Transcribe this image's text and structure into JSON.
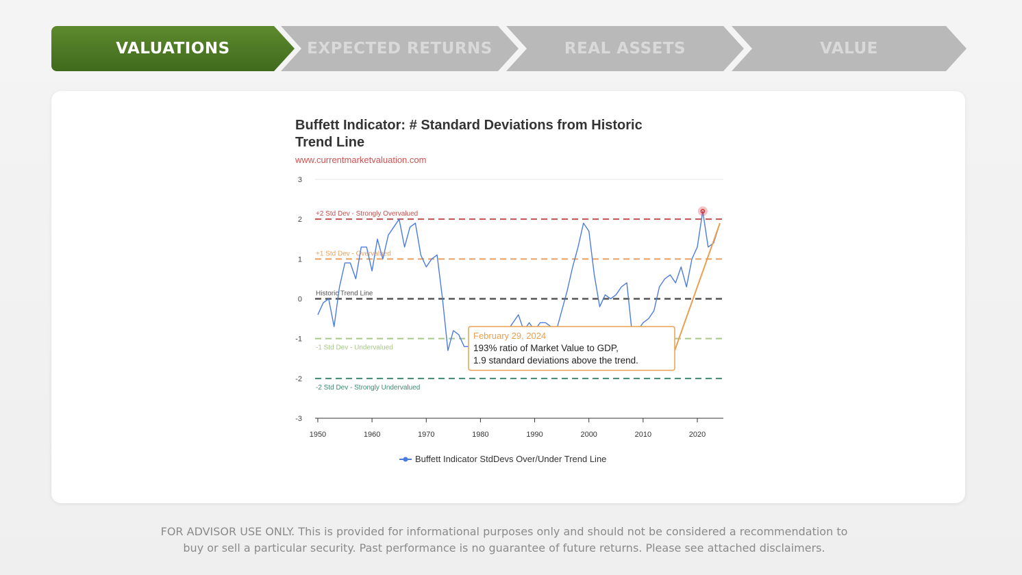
{
  "tabs": [
    {
      "label": "VALUATIONS",
      "active": true
    },
    {
      "label": "EXPECTED RETURNS",
      "active": false
    },
    {
      "label": "REAL ASSETS",
      "active": false
    },
    {
      "label": "VALUE",
      "active": false
    }
  ],
  "chart": {
    "title_line1": "Buffett Indicator: # Standard Deviations from Historic",
    "title_line2": "Trend Line",
    "source": "www.currentmarketvaluation.com"
  },
  "chart_data": {
    "type": "line",
    "xlim": [
      1949.5,
      2024.8
    ],
    "ylim": [
      -3,
      3
    ],
    "x_ticks": [
      1950,
      1960,
      1970,
      1980,
      1990,
      2000,
      2010,
      2020
    ],
    "y_ticks": [
      3,
      2,
      1,
      0,
      -1,
      -2,
      -3
    ],
    "reference_lines": [
      {
        "y": 2,
        "label": "+2 Std Dev - Strongly Overvalued",
        "color": "#c0504d"
      },
      {
        "y": 1,
        "label": "+1 Std Dev - Overvalued",
        "color": "#e8a060"
      },
      {
        "y": 0,
        "label": "Historic Trend Line",
        "color": "#555555"
      },
      {
        "y": -1,
        "label": "-1 Std Dev - Undervalued",
        "color": "#a8c888"
      },
      {
        "y": -2,
        "label": "-2 Std Dev - Strongly Undervalued",
        "color": "#3d8a6e"
      }
    ],
    "series": [
      {
        "name": "Buffett Indicator StdDevs Over/Under Trend Line",
        "color": "#4a7be0",
        "x": [
          1950,
          1951,
          1952,
          1953,
          1954,
          1955,
          1956,
          1957,
          1958,
          1959,
          1960,
          1961,
          1962,
          1963,
          1964,
          1965,
          1966,
          1967,
          1968,
          1969,
          1970,
          1971,
          1972,
          1973,
          1974,
          1975,
          1976,
          1977,
          1978,
          1979,
          1980,
          1981,
          1982,
          1983,
          1984,
          1985,
          1986,
          1987,
          1988,
          1989,
          1990,
          1991,
          1992,
          1993,
          1994,
          1995,
          1996,
          1997,
          1998,
          1999,
          2000,
          2001,
          2002,
          2003,
          2004,
          2005,
          2006,
          2007,
          2008,
          2009,
          2010,
          2011,
          2012,
          2013,
          2014,
          2015,
          2016,
          2017,
          2018,
          2019,
          2020,
          2021,
          2022,
          2023,
          2024.17
        ],
        "values": [
          -0.4,
          -0.1,
          0.0,
          -0.7,
          0.3,
          0.9,
          0.9,
          0.5,
          1.3,
          1.3,
          0.7,
          1.5,
          1.0,
          1.6,
          1.8,
          2.0,
          1.3,
          1.8,
          1.9,
          1.1,
          0.8,
          1.0,
          1.1,
          0.0,
          -1.3,
          -0.8,
          -0.9,
          -1.2,
          -1.2,
          -1.2,
          -1.0,
          -1.3,
          -1.2,
          -0.8,
          -1.1,
          -0.8,
          -0.6,
          -0.4,
          -0.8,
          -0.6,
          -0.8,
          -0.6,
          -0.6,
          -0.7,
          -0.8,
          -0.3,
          0.2,
          0.8,
          1.3,
          1.9,
          1.7,
          0.6,
          -0.2,
          0.1,
          0.0,
          0.1,
          0.3,
          0.4,
          -0.9,
          -0.8,
          -0.6,
          -0.5,
          -0.3,
          0.3,
          0.5,
          0.6,
          0.4,
          0.8,
          0.3,
          1.0,
          1.3,
          2.2,
          1.3,
          1.4,
          1.9
        ]
      }
    ],
    "tooltip": {
      "date": "February 29, 2024",
      "line1": "193% ratio of Market Value to GDP,",
      "line2": "1.9 standard deviations above the trend."
    },
    "grid": false,
    "legend_position": "bottom"
  },
  "footer": {
    "line1": "FOR ADVISOR USE ONLY. This is provided for informational purposes only and should not be considered a recommendation to",
    "line2": "buy or sell a particular security. Past performance is no guarantee of future returns. Please see attached disclaimers."
  }
}
